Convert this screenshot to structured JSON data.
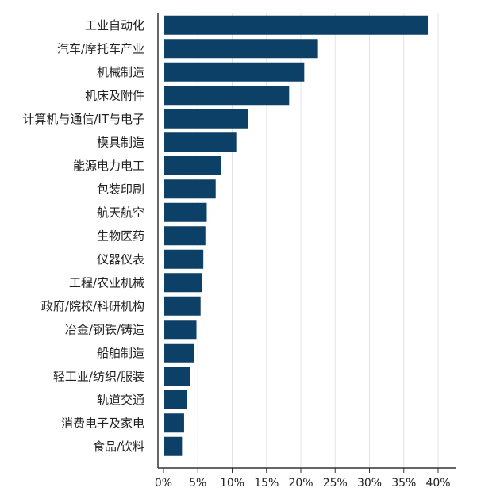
{
  "chart_data": {
    "type": "bar",
    "orientation": "horizontal",
    "title": "",
    "xlabel": "",
    "ylabel": "",
    "categories": [
      "工业自动化",
      "汽车/摩托车产业",
      "机械制造",
      "机床及附件",
      "计算机与通信/IT与电子",
      "模具制造",
      "能源电力电工",
      "包装印刷",
      "航天航空",
      "生物医药",
      "仪器仪表",
      "工程/农业机械",
      "政府/院校/科研机构",
      "冶金/钢铁/铸造",
      "船舶制造",
      "轻工业/纺织/服装",
      "轨道交通",
      "消费电子及家电",
      "食品/饮料"
    ],
    "values": [
      38.5,
      22.5,
      20.5,
      18.3,
      12.3,
      10.6,
      8.4,
      7.6,
      6.3,
      6.1,
      5.8,
      5.6,
      5.4,
      4.8,
      4.4,
      3.9,
      3.4,
      3.0,
      2.7
    ],
    "xlim": [
      0,
      40
    ],
    "xticks": [
      "0%",
      "5%",
      "10%",
      "15%",
      "20%",
      "25%",
      "30%",
      "35%",
      "40%"
    ],
    "grid": "vertical",
    "legend": "none",
    "bar_color": "#0c4066"
  }
}
